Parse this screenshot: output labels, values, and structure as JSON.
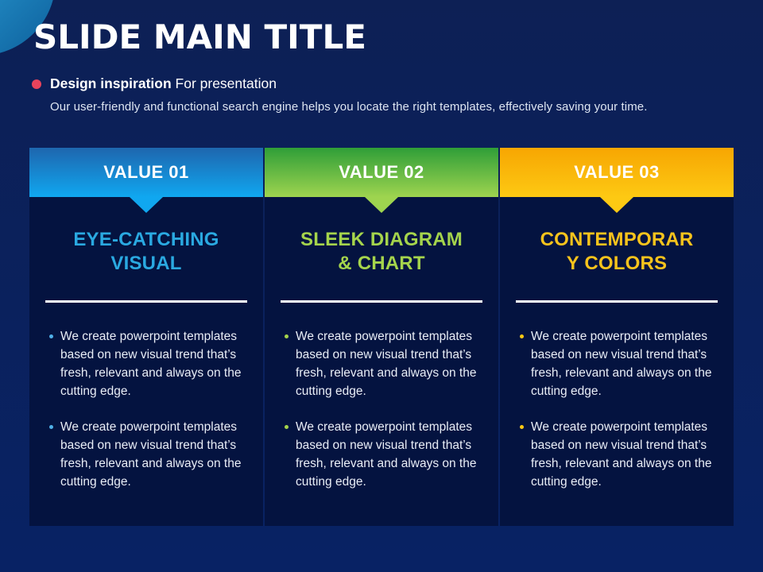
{
  "slide": {
    "title": "SLIDE MAIN TITLE",
    "subtitle_bold": "Design inspiration",
    "subtitle_regular": "For presentation",
    "description": "Our user-friendly and functional search engine helps you locate the right templates, effectively saving your time.",
    "colors": {
      "background_top": "#0d2055",
      "background_bottom": "#082264",
      "panel": "#041340",
      "accent_bullet": "#e8435c"
    }
  },
  "columns": [
    {
      "header": "VALUE 01",
      "heading_lines": [
        "EYE-CATCHING",
        "VISUAL"
      ],
      "colors": {
        "header_top": "#1e66ae",
        "header_bottom": "#10a7f0",
        "arrow": "#10a7f0",
        "heading_text": "#2aa9e1",
        "bullet": "#4fb0e8"
      },
      "bullets": [
        "We create powerpoint templates based on new visual trend that’s fresh, relevant and always on the cutting edge.",
        "We create powerpoint templates based on new visual trend that’s fresh, relevant and always on the cutting edge."
      ]
    },
    {
      "header": "VALUE 02",
      "heading_lines": [
        "SLEEK DIAGRAM",
        "& CHART"
      ],
      "colors": {
        "header_top": "#2f9e38",
        "header_bottom": "#9ed44f",
        "arrow": "#9ed44f",
        "heading_text": "#a5d44c",
        "bullet": "#a5d44c"
      },
      "bullets": [
        "We create powerpoint templates based on new visual trend that’s fresh, relevant and always on the cutting edge.",
        "We create powerpoint templates based on new visual trend that’s fresh, relevant and always on the cutting edge."
      ]
    },
    {
      "header": "VALUE 03",
      "heading_lines": [
        "CONTEMPORAR",
        "Y COLORS"
      ],
      "colors": {
        "header_top": "#f7a602",
        "header_bottom": "#fdc913",
        "arrow": "#fdc913",
        "heading_text": "#f7c31c",
        "bullet": "#fdc913"
      },
      "bullets": [
        "We create powerpoint templates based on new visual trend that’s fresh, relevant and always on the cutting edge.",
        "We create powerpoint templates based on new visual trend that’s fresh, relevant and always on the cutting edge."
      ]
    }
  ]
}
